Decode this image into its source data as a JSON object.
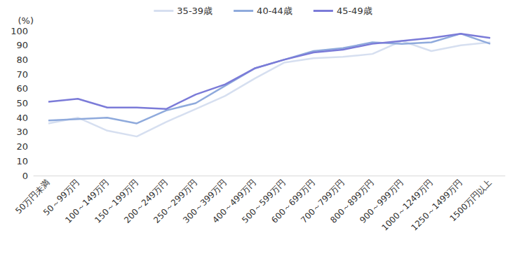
{
  "chart_data": {
    "type": "line",
    "ylabel": "(%)",
    "categories": [
      "50万円未満",
      "50～99万円",
      "100～149万円",
      "150～199万円",
      "200～249万円",
      "250～299万円",
      "300～399万円",
      "400～499万円",
      "500～599万円",
      "600～699万円",
      "700～799万円",
      "800～899万円",
      "900～999万円",
      "1000～1249万円",
      "1250～1499万円",
      "1500万円以上"
    ],
    "series": [
      {
        "name": "35-39歳",
        "color": "#d6dff0",
        "values": [
          36,
          40,
          31,
          27,
          37,
          46,
          55,
          67,
          78,
          81,
          82,
          84,
          93,
          86,
          90,
          92
        ]
      },
      {
        "name": "40-44歳",
        "color": "#8faadc",
        "values": [
          38,
          39,
          40,
          36,
          45,
          50,
          62,
          74,
          80,
          86,
          88,
          92,
          91,
          92,
          98,
          91
        ]
      },
      {
        "name": "45-49歳",
        "color": "#7b7bd8",
        "values": [
          51,
          53,
          47,
          47,
          46,
          56,
          63,
          74,
          80,
          85,
          87,
          91,
          93,
          95,
          98,
          95
        ]
      }
    ],
    "ylim": [
      0,
      100
    ],
    "yticks": [
      0,
      10,
      20,
      30,
      40,
      50,
      60,
      70,
      80,
      90,
      100
    ],
    "grid": false,
    "legend": "top",
    "marker": "none"
  }
}
